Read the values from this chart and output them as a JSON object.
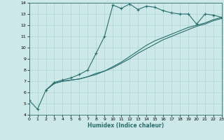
{
  "xlabel": "Humidex (Indice chaleur)",
  "bg_color": "#cce8e8",
  "line_color": "#2a6e6e",
  "grid_color": "#aed4d4",
  "xlim": [
    0,
    23
  ],
  "ylim": [
    4,
    14
  ],
  "xticks": [
    0,
    1,
    2,
    3,
    4,
    5,
    6,
    7,
    8,
    9,
    10,
    11,
    12,
    13,
    14,
    15,
    16,
    17,
    18,
    19,
    20,
    21,
    22,
    23
  ],
  "yticks": [
    4,
    5,
    6,
    7,
    8,
    9,
    10,
    11,
    12,
    13,
    14
  ],
  "curve1_x": [
    0,
    1,
    2,
    3,
    4,
    5,
    6,
    7,
    8,
    9,
    10,
    11,
    12,
    13,
    14,
    15,
    16,
    17,
    18,
    19,
    20,
    21,
    22,
    23
  ],
  "curve1_y": [
    5.3,
    4.5,
    6.2,
    6.9,
    7.1,
    7.3,
    7.6,
    8.0,
    9.5,
    11.0,
    13.8,
    13.5,
    13.9,
    13.4,
    13.7,
    13.6,
    13.3,
    13.1,
    13.0,
    13.0,
    12.1,
    13.0,
    12.9,
    12.7
  ],
  "curve2_x": [
    2,
    3,
    4,
    5,
    6,
    7,
    8,
    9,
    10,
    11,
    12,
    13,
    14,
    15,
    16,
    17,
    18,
    19,
    20,
    21,
    22,
    23
  ],
  "curve2_y": [
    6.2,
    6.8,
    7.0,
    7.1,
    7.2,
    7.4,
    7.7,
    7.9,
    8.3,
    8.7,
    9.2,
    9.7,
    10.2,
    10.6,
    10.9,
    11.2,
    11.5,
    11.8,
    12.0,
    12.2,
    12.5,
    12.7
  ],
  "curve3_x": [
    2,
    3,
    4,
    5,
    6,
    7,
    8,
    9,
    10,
    11,
    12,
    13,
    14,
    15,
    16,
    17,
    18,
    19,
    20,
    21,
    22,
    23
  ],
  "curve3_y": [
    6.2,
    6.8,
    7.0,
    7.1,
    7.2,
    7.4,
    7.6,
    7.9,
    8.2,
    8.6,
    9.0,
    9.5,
    9.9,
    10.3,
    10.7,
    11.0,
    11.3,
    11.6,
    11.9,
    12.1,
    12.4,
    12.6
  ]
}
